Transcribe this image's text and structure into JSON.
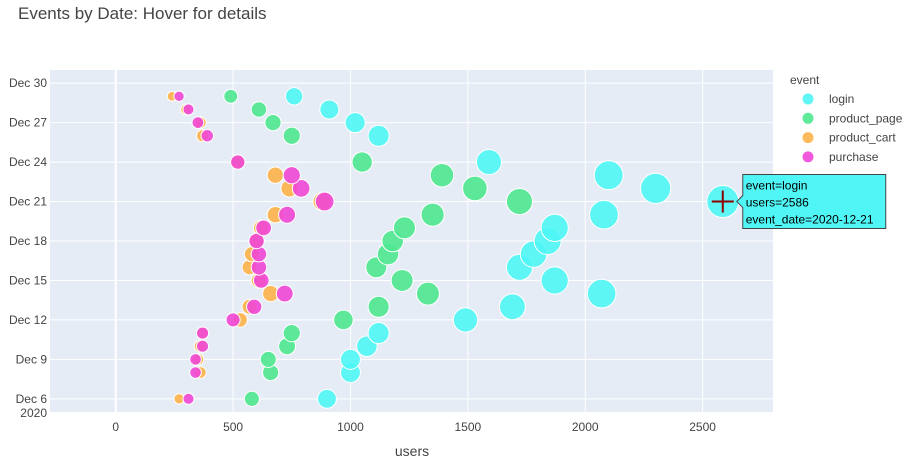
{
  "chart_data": {
    "type": "scatter",
    "title": "Events by Date: Hover for details",
    "xlabel": "users",
    "ylabel": "",
    "xlim": [
      -280,
      2800
    ],
    "ylim": [
      "2020-12-05",
      "2020-12-31"
    ],
    "x_ticks": [
      0,
      500,
      1000,
      1500,
      2000,
      2500
    ],
    "y_ticks": [
      {
        "date": "2020-12-06",
        "label": "Dec 6",
        "sub": "2020"
      },
      {
        "date": "2020-12-09",
        "label": "Dec 9"
      },
      {
        "date": "2020-12-12",
        "label": "Dec 12"
      },
      {
        "date": "2020-12-15",
        "label": "Dec 15"
      },
      {
        "date": "2020-12-18",
        "label": "Dec 18"
      },
      {
        "date": "2020-12-21",
        "label": "Dec 21"
      },
      {
        "date": "2020-12-24",
        "label": "Dec 24"
      },
      {
        "date": "2020-12-27",
        "label": "Dec 27"
      },
      {
        "date": "2020-12-30",
        "label": "Dec 30"
      }
    ],
    "grid": true,
    "legend": {
      "title": "event",
      "placement": "right"
    },
    "size_by": "users",
    "series": [
      {
        "name": "login",
        "color": "#4ff6f5",
        "points": [
          [
            "2020-12-06",
            900
          ],
          [
            "2020-12-08",
            1000
          ],
          [
            "2020-12-09",
            1000
          ],
          [
            "2020-12-10",
            1070
          ],
          [
            "2020-12-11",
            1120
          ],
          [
            "2020-12-12",
            1490
          ],
          [
            "2020-12-13",
            1690
          ],
          [
            "2020-12-14",
            2070
          ],
          [
            "2020-12-15",
            1870
          ],
          [
            "2020-12-16",
            1720
          ],
          [
            "2020-12-17",
            1780
          ],
          [
            "2020-12-18",
            1840
          ],
          [
            "2020-12-19",
            1870
          ],
          [
            "2020-12-21",
            2586
          ],
          [
            "2020-12-20",
            2080
          ],
          [
            "2020-12-22",
            2300
          ],
          [
            "2020-12-23",
            2100
          ],
          [
            "2020-12-24",
            1590
          ],
          [
            "2020-12-26",
            1120
          ],
          [
            "2020-12-27",
            1020
          ],
          [
            "2020-12-28",
            910
          ],
          [
            "2020-12-29",
            760
          ]
        ]
      },
      {
        "name": "product_page",
        "color": "#4ee88f",
        "points": [
          [
            "2020-12-06",
            580
          ],
          [
            "2020-12-08",
            660
          ],
          [
            "2020-12-09",
            650
          ],
          [
            "2020-12-10",
            730
          ],
          [
            "2020-12-11",
            750
          ],
          [
            "2020-12-12",
            970
          ],
          [
            "2020-12-13",
            1120
          ],
          [
            "2020-12-14",
            1330
          ],
          [
            "2020-12-15",
            1220
          ],
          [
            "2020-12-16",
            1110
          ],
          [
            "2020-12-17",
            1160
          ],
          [
            "2020-12-18",
            1180
          ],
          [
            "2020-12-19",
            1230
          ],
          [
            "2020-12-20",
            1350
          ],
          [
            "2020-12-21",
            1720
          ],
          [
            "2020-12-22",
            1530
          ],
          [
            "2020-12-23",
            1390
          ],
          [
            "2020-12-24",
            1050
          ],
          [
            "2020-12-26",
            750
          ],
          [
            "2020-12-27",
            670
          ],
          [
            "2020-12-28",
            610
          ],
          [
            "2020-12-29",
            490
          ]
        ]
      },
      {
        "name": "product_cart",
        "color": "#fdb24a",
        "points": [
          [
            "2020-12-06",
            270
          ],
          [
            "2020-12-08",
            360
          ],
          [
            "2020-12-09",
            350
          ],
          [
            "2020-12-10",
            360
          ],
          [
            "2020-12-11",
            370
          ],
          [
            "2020-12-12",
            530
          ],
          [
            "2020-12-13",
            570
          ],
          [
            "2020-12-14",
            660
          ],
          [
            "2020-12-15",
            610
          ],
          [
            "2020-12-16",
            570
          ],
          [
            "2020-12-17",
            580
          ],
          [
            "2020-12-18",
            600
          ],
          [
            "2020-12-19",
            620
          ],
          [
            "2020-12-20",
            680
          ],
          [
            "2020-12-21",
            880
          ],
          [
            "2020-12-22",
            740
          ],
          [
            "2020-12-23",
            680
          ],
          [
            "2020-12-24",
            520
          ],
          [
            "2020-12-26",
            370
          ],
          [
            "2020-12-27",
            360
          ],
          [
            "2020-12-28",
            300
          ],
          [
            "2020-12-29",
            240
          ]
        ]
      },
      {
        "name": "purchase",
        "color": "#f047d6",
        "points": [
          [
            "2020-12-06",
            310
          ],
          [
            "2020-12-08",
            340
          ],
          [
            "2020-12-09",
            340
          ],
          [
            "2020-12-10",
            370
          ],
          [
            "2020-12-11",
            370
          ],
          [
            "2020-12-12",
            500
          ],
          [
            "2020-12-13",
            590
          ],
          [
            "2020-12-14",
            720
          ],
          [
            "2020-12-15",
            620
          ],
          [
            "2020-12-16",
            610
          ],
          [
            "2020-12-17",
            610
          ],
          [
            "2020-12-18",
            600
          ],
          [
            "2020-12-19",
            630
          ],
          [
            "2020-12-20",
            730
          ],
          [
            "2020-12-21",
            890
          ],
          [
            "2020-12-22",
            790
          ],
          [
            "2020-12-23",
            750
          ],
          [
            "2020-12-24",
            520
          ],
          [
            "2020-12-26",
            390
          ],
          [
            "2020-12-27",
            350
          ],
          [
            "2020-12-28",
            310
          ],
          [
            "2020-12-29",
            270
          ]
        ]
      }
    ],
    "hover": {
      "lines": [
        "event=login",
        "users=2586",
        "event_date=2020-12-21"
      ],
      "point": {
        "series": "login",
        "date": "2020-12-21",
        "users": 2586
      }
    }
  }
}
